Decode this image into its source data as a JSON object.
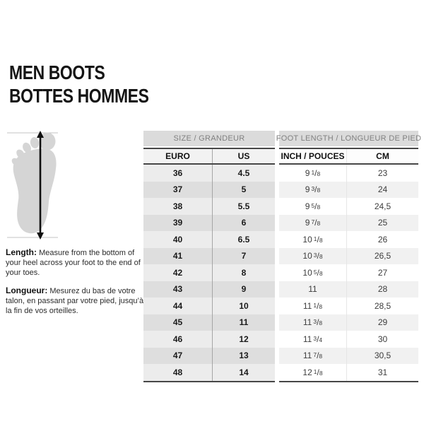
{
  "title": {
    "line1": "MEN BOOTS",
    "line2": "BOTTES HOMMES"
  },
  "figure": {
    "icon": "foot-sole-with-measure-arrow"
  },
  "instructions": [
    {
      "label": "Length:",
      "text": "Measure from the bottom of your heel across your foot to the end of your toes."
    },
    {
      "label": "Longueur:",
      "text": "Mesurez du bas de votre talon, en passant par votre pied, jusqu’à la fin de vos orteilles."
    }
  ],
  "table": {
    "group_headers": [
      {
        "label": "SIZE / GRANDEUR"
      },
      {
        "label": "FOOT LENGTH / LONGUEUR DE PIED"
      }
    ],
    "column_headers": {
      "euro": "EURO",
      "us": "US",
      "inch": "INCH / POUCES",
      "cm": "CM"
    },
    "rows": [
      {
        "euro": "36",
        "us": "4.5",
        "inch": "9 1/8",
        "cm": "23"
      },
      {
        "euro": "37",
        "us": "5",
        "inch": "9 3/8",
        "cm": "24"
      },
      {
        "euro": "38",
        "us": "5.5",
        "inch": "9 5/8",
        "cm": "24,5"
      },
      {
        "euro": "39",
        "us": "6",
        "inch": "9 7/8",
        "cm": "25"
      },
      {
        "euro": "40",
        "us": "6.5",
        "inch": "10 1/8",
        "cm": "26"
      },
      {
        "euro": "41",
        "us": "7",
        "inch": "10 3/8",
        "cm": "26,5"
      },
      {
        "euro": "42",
        "us": "8",
        "inch": "10 5/8",
        "cm": "27"
      },
      {
        "euro": "43",
        "us": "9",
        "inch": "11",
        "cm": "28"
      },
      {
        "euro": "44",
        "us": "10",
        "inch": "11 1/8",
        "cm": "28,5"
      },
      {
        "euro": "45",
        "us": "11",
        "inch": "11 3/8",
        "cm": "29"
      },
      {
        "euro": "46",
        "us": "12",
        "inch": "11 3/4",
        "cm": "30"
      },
      {
        "euro": "47",
        "us": "13",
        "inch": "11 7/8",
        "cm": "30,5"
      },
      {
        "euro": "48",
        "us": "14",
        "inch": "12 1/8",
        "cm": "31"
      }
    ]
  },
  "colors": {
    "header_bg": "#dbdbdb",
    "header_text": "#808080",
    "dark_border": "#474747",
    "left_row_odd": "#ececec",
    "left_row_even": "#dedede",
    "right_row_odd": "#ffffff",
    "right_row_even": "#f1f1f1",
    "foot_fill": "#d5d5d5"
  }
}
